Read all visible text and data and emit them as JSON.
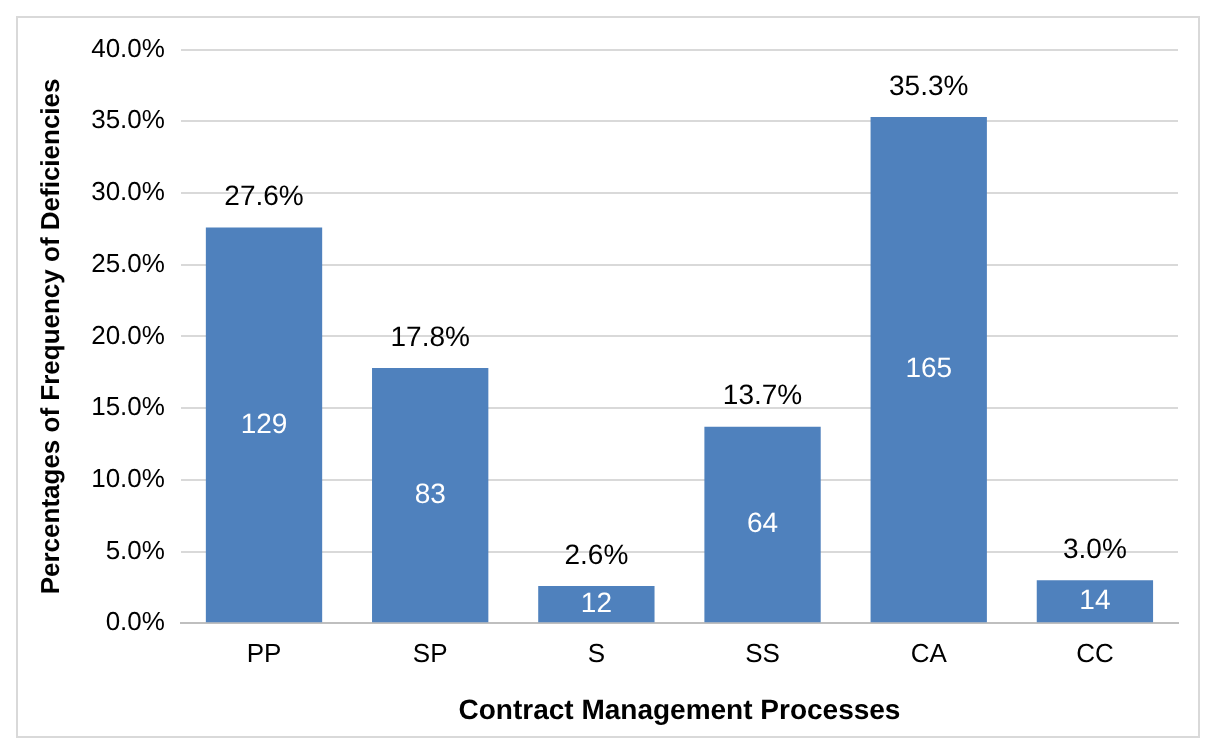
{
  "chart_data": {
    "type": "bar",
    "xlabel": "Contract Management Processes",
    "ylabel": "Percentages of Frequency of Deficiencies",
    "categories": [
      "PP",
      "SP",
      "S",
      "SS",
      "CA",
      "CC"
    ],
    "values": [
      27.6,
      17.8,
      2.6,
      13.7,
      35.3,
      3.0
    ],
    "value_labels": [
      "27.6%",
      "17.8%",
      "2.6%",
      "13.7%",
      "35.3%",
      "3.0%"
    ],
    "color": "#4f81bd",
    "ylim": [
      0,
      40
    ],
    "yticks": [
      {
        "value": 0,
        "label": "0.0%"
      },
      {
        "value": 5,
        "label": "5.0%"
      },
      {
        "value": 10,
        "label": "10.0%"
      },
      {
        "value": 15,
        "label": "15.0%"
      },
      {
        "value": 20,
        "label": "20.0%"
      },
      {
        "value": 25,
        "label": "25.0%"
      },
      {
        "value": 30,
        "label": "30.0%"
      },
      {
        "value": 35,
        "label": "35.0%"
      },
      {
        "value": 40,
        "label": "40.0%"
      }
    ],
    "grid": "y",
    "annotations": [
      "129",
      "83",
      "12",
      "64",
      "165",
      "14"
    ]
  }
}
